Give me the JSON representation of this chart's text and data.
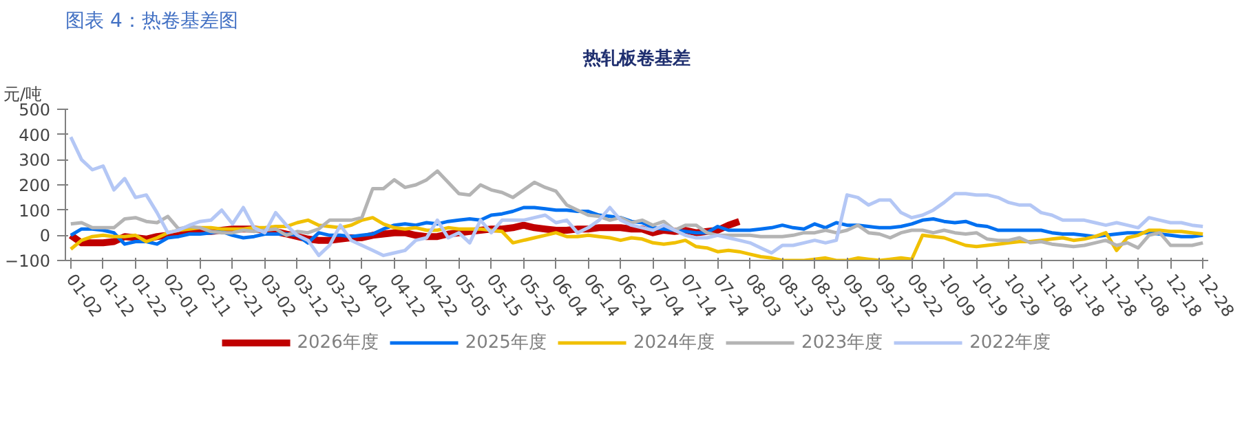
{
  "chart_data": {
    "type": "line",
    "title": "图表 4：热卷基差图",
    "subtitle": "热轧板卷基差",
    "ylabel": "元/吨",
    "categories": [
      "01-02",
      null,
      null,
      "01-12",
      null,
      null,
      "01-22",
      null,
      null,
      "02-01",
      null,
      null,
      "02-11",
      null,
      null,
      "02-21",
      null,
      null,
      "03-02",
      null,
      null,
      "03-12",
      null,
      null,
      "03-22",
      null,
      null,
      "04-01",
      null,
      null,
      "04-12",
      null,
      null,
      "04-22",
      null,
      null,
      "05-05",
      null,
      null,
      "05-15",
      null,
      null,
      "05-25",
      null,
      null,
      "06-04",
      null,
      null,
      "06-14",
      null,
      null,
      "06-24",
      null,
      null,
      "07-04",
      null,
      null,
      "07-14",
      null,
      null,
      "07-24",
      null,
      null,
      "08-03",
      null,
      null,
      "08-13",
      null,
      null,
      "08-23",
      null,
      null,
      "09-02",
      null,
      null,
      "09-12",
      null,
      null,
      "09-22",
      null,
      null,
      "10-09",
      null,
      null,
      "10-19",
      null,
      null,
      "10-29",
      null,
      null,
      "11-08",
      null,
      null,
      "11-18",
      null,
      null,
      "11-28",
      null,
      null,
      "12-08",
      null,
      null,
      "12-18",
      null,
      null,
      "12-28"
    ],
    "ylim": [
      -100,
      500
    ],
    "yticks": [
      -100,
      0,
      100,
      200,
      300,
      400,
      500
    ],
    "grid": false,
    "legend": "bottom",
    "marker": "none",
    "line_style": "solid",
    "series": [
      {
        "name": "2026年度",
        "color": "#c00000",
        "values": [
          0,
          -30,
          -30,
          -30,
          -25,
          -5,
          -10,
          -15,
          -5,
          0,
          10,
          15,
          15,
          15,
          20,
          25,
          25,
          25,
          20,
          15,
          5,
          -5,
          -15,
          -20,
          -20,
          -15,
          -10,
          -10,
          0,
          5,
          10,
          10,
          0,
          -5,
          -5,
          5,
          10,
          15,
          20,
          25,
          25,
          30,
          40,
          30,
          25,
          20,
          20,
          25,
          25,
          30,
          30,
          30,
          25,
          25,
          10,
          20,
          15,
          20,
          10,
          15,
          20,
          40,
          55,
          null,
          null,
          null,
          null,
          null,
          null,
          null,
          null,
          null,
          null,
          null,
          null,
          null,
          null,
          null,
          null,
          null,
          null,
          null,
          null,
          null,
          null,
          null,
          null,
          null,
          null,
          null,
          null,
          null,
          null,
          null,
          null,
          null,
          null,
          null,
          null,
          null,
          null,
          null,
          null,
          null,
          null,
          null
        ]
      },
      {
        "name": "2025年度",
        "color": "#0070f0",
        "values": [
          0,
          25,
          25,
          20,
          10,
          -35,
          -25,
          -25,
          -35,
          -10,
          -5,
          5,
          5,
          10,
          15,
          0,
          -10,
          -5,
          5,
          5,
          5,
          0,
          -30,
          10,
          0,
          0,
          -5,
          0,
          5,
          25,
          40,
          45,
          40,
          50,
          45,
          55,
          60,
          65,
          60,
          80,
          85,
          95,
          110,
          110,
          105,
          100,
          100,
          95,
          95,
          80,
          75,
          70,
          55,
          50,
          30,
          25,
          20,
          15,
          10,
          10,
          35,
          20,
          20,
          20,
          25,
          30,
          40,
          30,
          25,
          45,
          30,
          50,
          40,
          40,
          35,
          30,
          30,
          35,
          45,
          60,
          65,
          55,
          50,
          55,
          40,
          35,
          20,
          20,
          20,
          20,
          20,
          10,
          5,
          5,
          0,
          -5,
          0,
          5,
          10,
          10,
          10,
          5,
          0,
          -5,
          -5,
          0
        ]
      },
      {
        "name": "2024年度",
        "color": "#f0c000",
        "values": [
          -55,
          -20,
          -5,
          0,
          -5,
          -5,
          0,
          -25,
          -10,
          10,
          20,
          25,
          30,
          30,
          25,
          25,
          25,
          30,
          30,
          35,
          35,
          50,
          60,
          40,
          35,
          30,
          40,
          60,
          70,
          45,
          30,
          25,
          30,
          20,
          20,
          30,
          25,
          25,
          25,
          20,
          15,
          -30,
          -20,
          -10,
          0,
          10,
          -5,
          -5,
          0,
          -5,
          -10,
          -20,
          -10,
          -15,
          -30,
          -35,
          -30,
          -20,
          -45,
          -50,
          -65,
          -60,
          -65,
          -75,
          -85,
          -90,
          -100,
          -100,
          -100,
          -95,
          -90,
          -100,
          -100,
          -90,
          -95,
          -100,
          -95,
          -90,
          -95,
          0,
          -5,
          -10,
          -25,
          -40,
          -45,
          -40,
          -35,
          -30,
          -25,
          -25,
          -20,
          -15,
          -10,
          -20,
          -15,
          -5,
          10,
          -60,
          -10,
          0,
          20,
          20,
          15,
          15,
          10,
          5
        ]
      },
      {
        "name": "2023年度",
        "color": "#b4b4b4",
        "values": [
          45,
          50,
          30,
          30,
          30,
          65,
          70,
          55,
          50,
          75,
          25,
          35,
          30,
          15,
          10,
          10,
          20,
          15,
          20,
          25,
          0,
          15,
          10,
          25,
          60,
          60,
          60,
          70,
          185,
          185,
          220,
          190,
          200,
          220,
          255,
          210,
          165,
          160,
          200,
          180,
          170,
          150,
          180,
          210,
          190,
          175,
          120,
          100,
          80,
          75,
          60,
          70,
          50,
          60,
          40,
          55,
          20,
          40,
          40,
          10,
          0,
          0,
          0,
          0,
          -5,
          -5,
          -5,
          0,
          10,
          10,
          20,
          10,
          20,
          40,
          10,
          5,
          -10,
          10,
          20,
          20,
          10,
          20,
          10,
          5,
          10,
          -15,
          -20,
          -20,
          -10,
          -30,
          -25,
          -35,
          -40,
          -45,
          -40,
          -30,
          -20,
          -40,
          -30,
          -50,
          0,
          10,
          -40,
          -40,
          -40,
          -30
        ]
      },
      {
        "name": "2022年度",
        "color": "#b4c7f5",
        "values": [
          390,
          300,
          260,
          275,
          180,
          225,
          150,
          160,
          90,
          10,
          20,
          40,
          55,
          60,
          100,
          45,
          110,
          30,
          10,
          90,
          40,
          0,
          -20,
          -80,
          -40,
          40,
          -20,
          -40,
          -60,
          -80,
          -70,
          -60,
          -20,
          -10,
          60,
          -10,
          10,
          -30,
          60,
          10,
          60,
          60,
          60,
          70,
          80,
          50,
          60,
          10,
          30,
          60,
          110,
          60,
          40,
          30,
          20,
          40,
          20,
          0,
          -10,
          -10,
          0,
          -10,
          -20,
          -30,
          -50,
          -70,
          -40,
          -40,
          -30,
          -20,
          -30,
          -20,
          160,
          150,
          120,
          140,
          140,
          90,
          70,
          80,
          100,
          130,
          165,
          165,
          160,
          160,
          150,
          130,
          120,
          120,
          90,
          80,
          60,
          60,
          60,
          50,
          40,
          50,
          40,
          30,
          70,
          60,
          50,
          50,
          40,
          35
        ]
      }
    ]
  }
}
